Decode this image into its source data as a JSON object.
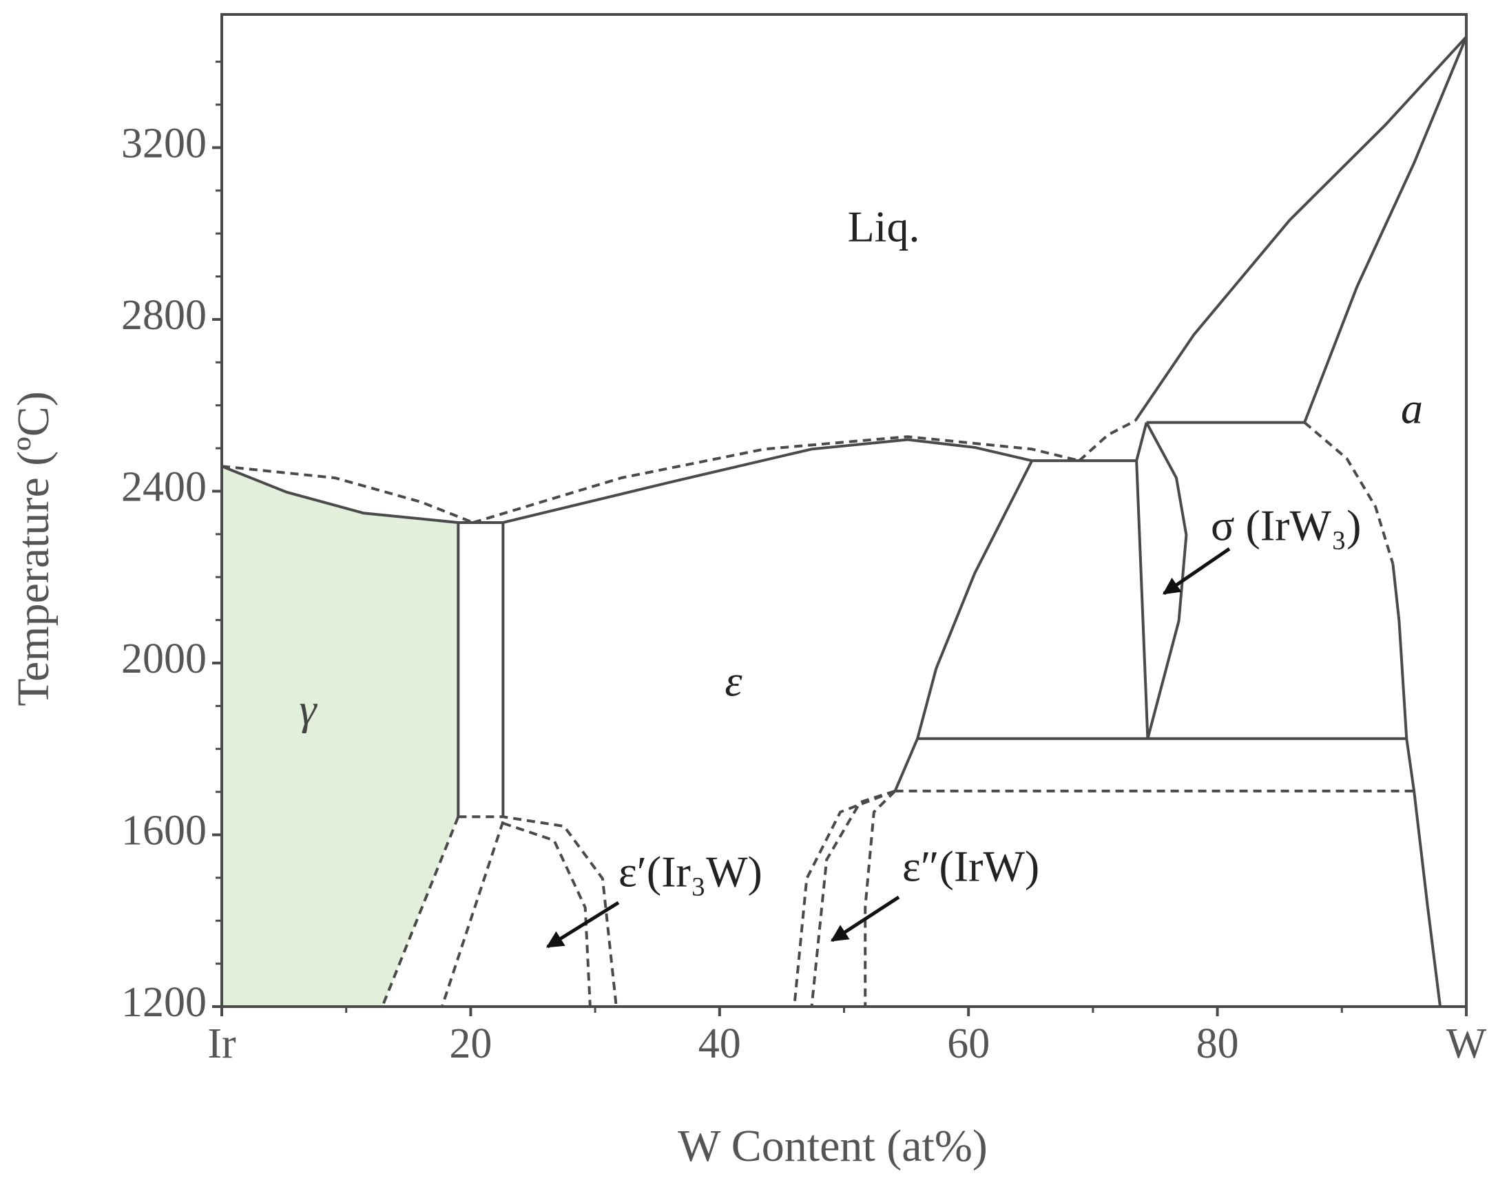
{
  "chart_data": {
    "type": "phase-diagram",
    "x_label": "W Content (at%)",
    "y_label": "Temperature (ºC)",
    "xlim": [
      0,
      100
    ],
    "ylim": [
      1200,
      3510
    ],
    "xticks": [
      {
        "value": 0,
        "label": "Ir"
      },
      20,
      40,
      60,
      80,
      {
        "value": 100,
        "label": "W"
      }
    ],
    "xminorticks": [
      10,
      30,
      50,
      70,
      90
    ],
    "yticks": [
      1200,
      1600,
      2000,
      2400,
      2800,
      3200
    ],
    "yminorticks": [
      1300,
      1400,
      1500,
      1700,
      1800,
      1900,
      2100,
      2200,
      2300,
      2500,
      2600,
      2700,
      2900,
      3000,
      3100,
      3300,
      3400
    ],
    "line_color": "#4a4a4a",
    "regions": [
      {
        "color": "#e2efda",
        "x": [
          0,
          5.2,
          11.4,
          19.0,
          19.0,
          12.9,
          0
        ],
        "values": [
          2458,
          2398,
          2349,
          2327,
          1642,
          1200,
          1200
        ]
      }
    ],
    "series": [
      {
        "style": "solid",
        "x": [
          0,
          5.2,
          11.4,
          19.0
        ],
        "values": [
          2458,
          2398,
          2349,
          2327
        ]
      },
      {
        "style": "solid",
        "x": [
          19.0,
          19.0
        ],
        "values": [
          2327,
          1642
        ]
      },
      {
        "style": "dashed",
        "x": [
          19.0,
          12.9
        ],
        "values": [
          1642,
          1200
        ]
      },
      {
        "style": "dashed",
        "x": [
          0,
          9.1,
          16.0,
          20.2
        ],
        "values": [
          2458,
          2431,
          2375,
          2327
        ]
      },
      {
        "style": "solid",
        "x": [
          19.0,
          22.6
        ],
        "values": [
          2327,
          2327
        ]
      },
      {
        "style": "solid",
        "x": [
          22.6,
          22.6
        ],
        "values": [
          2327,
          1642
        ]
      },
      {
        "style": "solid",
        "x": [
          22.6,
          35.9,
          47.4,
          55.1,
          60.5,
          65.1
        ],
        "values": [
          2327,
          2420,
          2498,
          2520,
          2502,
          2471
        ]
      },
      {
        "style": "dashed",
        "x": [
          20.2,
          32.1,
          43.6,
          55.1,
          65.1,
          68.9
        ],
        "values": [
          2327,
          2431,
          2498,
          2527,
          2498,
          2471
        ]
      },
      {
        "style": "solid",
        "x": [
          65.1,
          73.5
        ],
        "values": [
          2471,
          2471
        ]
      },
      {
        "style": "solid",
        "x": [
          65.1,
          60.5,
          57.4,
          55.9,
          54.1
        ],
        "values": [
          2471,
          2209,
          1987,
          1824,
          1702
        ]
      },
      {
        "style": "solid",
        "x": [
          55.9,
          95.2
        ],
        "values": [
          1824,
          1824
        ]
      },
      {
        "style": "dashed",
        "x": [
          54.1,
          95.8
        ],
        "values": [
          1702,
          1702
        ]
      },
      {
        "style": "dashed",
        "x": [
          19.0,
          22.6,
          27.5,
          30.6,
          31.7
        ],
        "values": [
          1642,
          1642,
          1620,
          1498,
          1200
        ]
      },
      {
        "style": "dashed",
        "x": [
          22.6,
          26.7,
          29.2,
          29.6
        ],
        "values": [
          1627,
          1587,
          1431,
          1200
        ]
      },
      {
        "style": "dashed",
        "x": [
          22.6,
          17.7
        ],
        "values": [
          1631,
          1200
        ]
      },
      {
        "style": "dashed",
        "x": [
          54.1,
          49.7,
          47.0,
          46.0
        ],
        "values": [
          1702,
          1653,
          1498,
          1200
        ]
      },
      {
        "style": "dashed",
        "x": [
          54.1,
          51.3,
          48.6,
          47.4
        ],
        "values": [
          1702,
          1676,
          1542,
          1200
        ]
      },
      {
        "style": "dashed",
        "x": [
          54.1,
          52.4,
          51.7,
          51.7
        ],
        "values": [
          1702,
          1653,
          1431,
          1200
        ]
      },
      {
        "style": "solid",
        "x": [
          73.5,
          74.4
        ],
        "values": [
          2471,
          1824
        ]
      },
      {
        "style": "solid",
        "x": [
          73.5,
          74.3
        ],
        "values": [
          2471,
          2560
        ]
      },
      {
        "style": "solid",
        "x": [
          74.3,
          87.0
        ],
        "values": [
          2560,
          2560
        ]
      },
      {
        "style": "solid",
        "x": [
          74.3,
          76.7,
          77.5,
          76.9,
          74.4
        ],
        "values": [
          2560,
          2431,
          2298,
          2098,
          1824
        ]
      },
      {
        "style": "solid",
        "x": [
          73.4,
          78.1,
          85.8,
          93.5,
          100
        ],
        "values": [
          2564,
          2764,
          3031,
          3253,
          3458
        ]
      },
      {
        "style": "solid",
        "x": [
          87.0,
          91.2,
          95.8,
          100
        ],
        "values": [
          2560,
          2875,
          3164,
          3458
        ]
      },
      {
        "style": "dashed",
        "x": [
          68.9,
          71.2,
          73.4
        ],
        "values": [
          2471,
          2531,
          2564
        ]
      },
      {
        "style": "dashed",
        "x": [
          87.0,
          90.4,
          92.7,
          94.1
        ],
        "values": [
          2560,
          2476,
          2364,
          2231
        ]
      },
      {
        "style": "solid",
        "x": [
          94.1,
          94.6,
          95.2,
          95.8,
          96.9,
          97.9
        ],
        "values": [
          2231,
          2098,
          1824,
          1702,
          1431,
          1200
        ]
      }
    ],
    "annotations": [
      "Liq.",
      "γ",
      "ε",
      "a",
      "σ (IrW₃)",
      "ε′(Ir₃W)",
      "ε″(IrW)"
    ]
  }
}
